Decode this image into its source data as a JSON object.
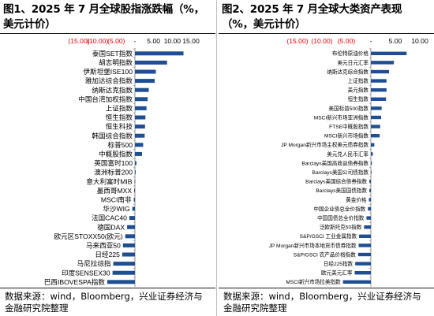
{
  "chart_data": [
    {
      "type": "bar",
      "orientation": "horizontal",
      "title": "图1、2025 年 7 月全球股指涨跌幅（%，美元计价）",
      "source": "数据来源：wind，Bloomberg，兴业证券经济与金融研究院整理",
      "xlim": [
        -15,
        15
      ],
      "ticks": [
        -15,
        -10,
        -5,
        0,
        5,
        10,
        15
      ],
      "tick_labels": [
        "(15.00)",
        "(10.00)",
        "(5.00)",
        "-",
        "5.00",
        "10.00",
        "15.00"
      ],
      "negative_tick_color": "#e8000b",
      "bar_color": "#1f4e91",
      "categories": [
        "泰国SET指数",
        "胡志明指数",
        "伊斯坦堡ISE100",
        "雅加达综合指数",
        "纳斯达克指数",
        "中国台湾加权指数",
        "上证指数",
        "恒生指数",
        "恒生科技",
        "韩国综合指数",
        "标普500",
        "中概股指数",
        "英国富时100",
        "澳洲标普200",
        "意大利富时MIB",
        "墨西哥MXX",
        "MSCI南非",
        "华沙WIG",
        "法国CAC40",
        "德国DAX",
        "欧元区STOXX50(欧元)",
        "马来西亚50",
        "日经225",
        "马尼拉综指",
        "印度SENSEX30",
        "巴西IBOVESPA指数"
      ],
      "values": [
        13.0,
        8.6,
        5.6,
        5.3,
        3.7,
        3.4,
        3.1,
        2.8,
        2.7,
        2.6,
        2.2,
        1.9,
        0.4,
        0.2,
        -0.1,
        -0.2,
        -0.3,
        -0.7,
        -1.5,
        -2.1,
        -2.6,
        -3.2,
        -3.4,
        -5.8,
        -6.0,
        -7.4
      ]
    },
    {
      "type": "bar",
      "orientation": "horizontal",
      "title": "图2、2025 年 7 月全球大类资产表现（%，美元计价）",
      "source": "数据来源：wind，Bloomberg，兴业证券经济与金融研究院整理",
      "xlim": [
        -15,
        10
      ],
      "ticks": [
        -15,
        -10,
        -5,
        0,
        5,
        10
      ],
      "tick_labels": [
        "(15.00)",
        "(10.00)",
        "(5.00)",
        "-",
        "5.00",
        "10.00"
      ],
      "negative_tick_color": "#e8000b",
      "bar_color": "#1f4e91",
      "categories": [
        "布伦特原油价格",
        "美元日元汇率",
        "纳斯达克综合指数",
        "上证指数",
        "美元指数",
        "恒生指数",
        "美国标普500指数",
        "MSCI新兴市场亚洲指数",
        "FTSE中概股指数",
        "MSCI新兴市场指数",
        "JP Morgan新兴市场主权美元债券指数",
        "美元兑人民币汇率",
        "Barclays美国高收益债券指数",
        "Barclays美国公司债指数",
        "Barclays美国综合债券指数",
        "Barclays美国国债指数",
        "黄金价格",
        "中国企业债总全价指数",
        "中国国债总全价指数",
        "泛欧斯托克50指数",
        "S&P/GSCI 工业金属指数",
        "JP Morgan新兴市场本地货币债券指数",
        "S&P/GSCI 农产品价格指数",
        "日经225指数",
        "欧元美元汇率",
        "MSCI新兴市场拉美指数"
      ],
      "values": [
        7.3,
        4.7,
        3.7,
        3.2,
        3.2,
        3.1,
        2.2,
        2.1,
        1.9,
        1.8,
        0.7,
        0.4,
        0.2,
        0.1,
        -0.3,
        -0.3,
        -0.4,
        -0.6,
        -0.9,
        -1.4,
        -2.4,
        -2.5,
        -2.6,
        -3.2,
        -3.3,
        -5.7
      ]
    }
  ]
}
